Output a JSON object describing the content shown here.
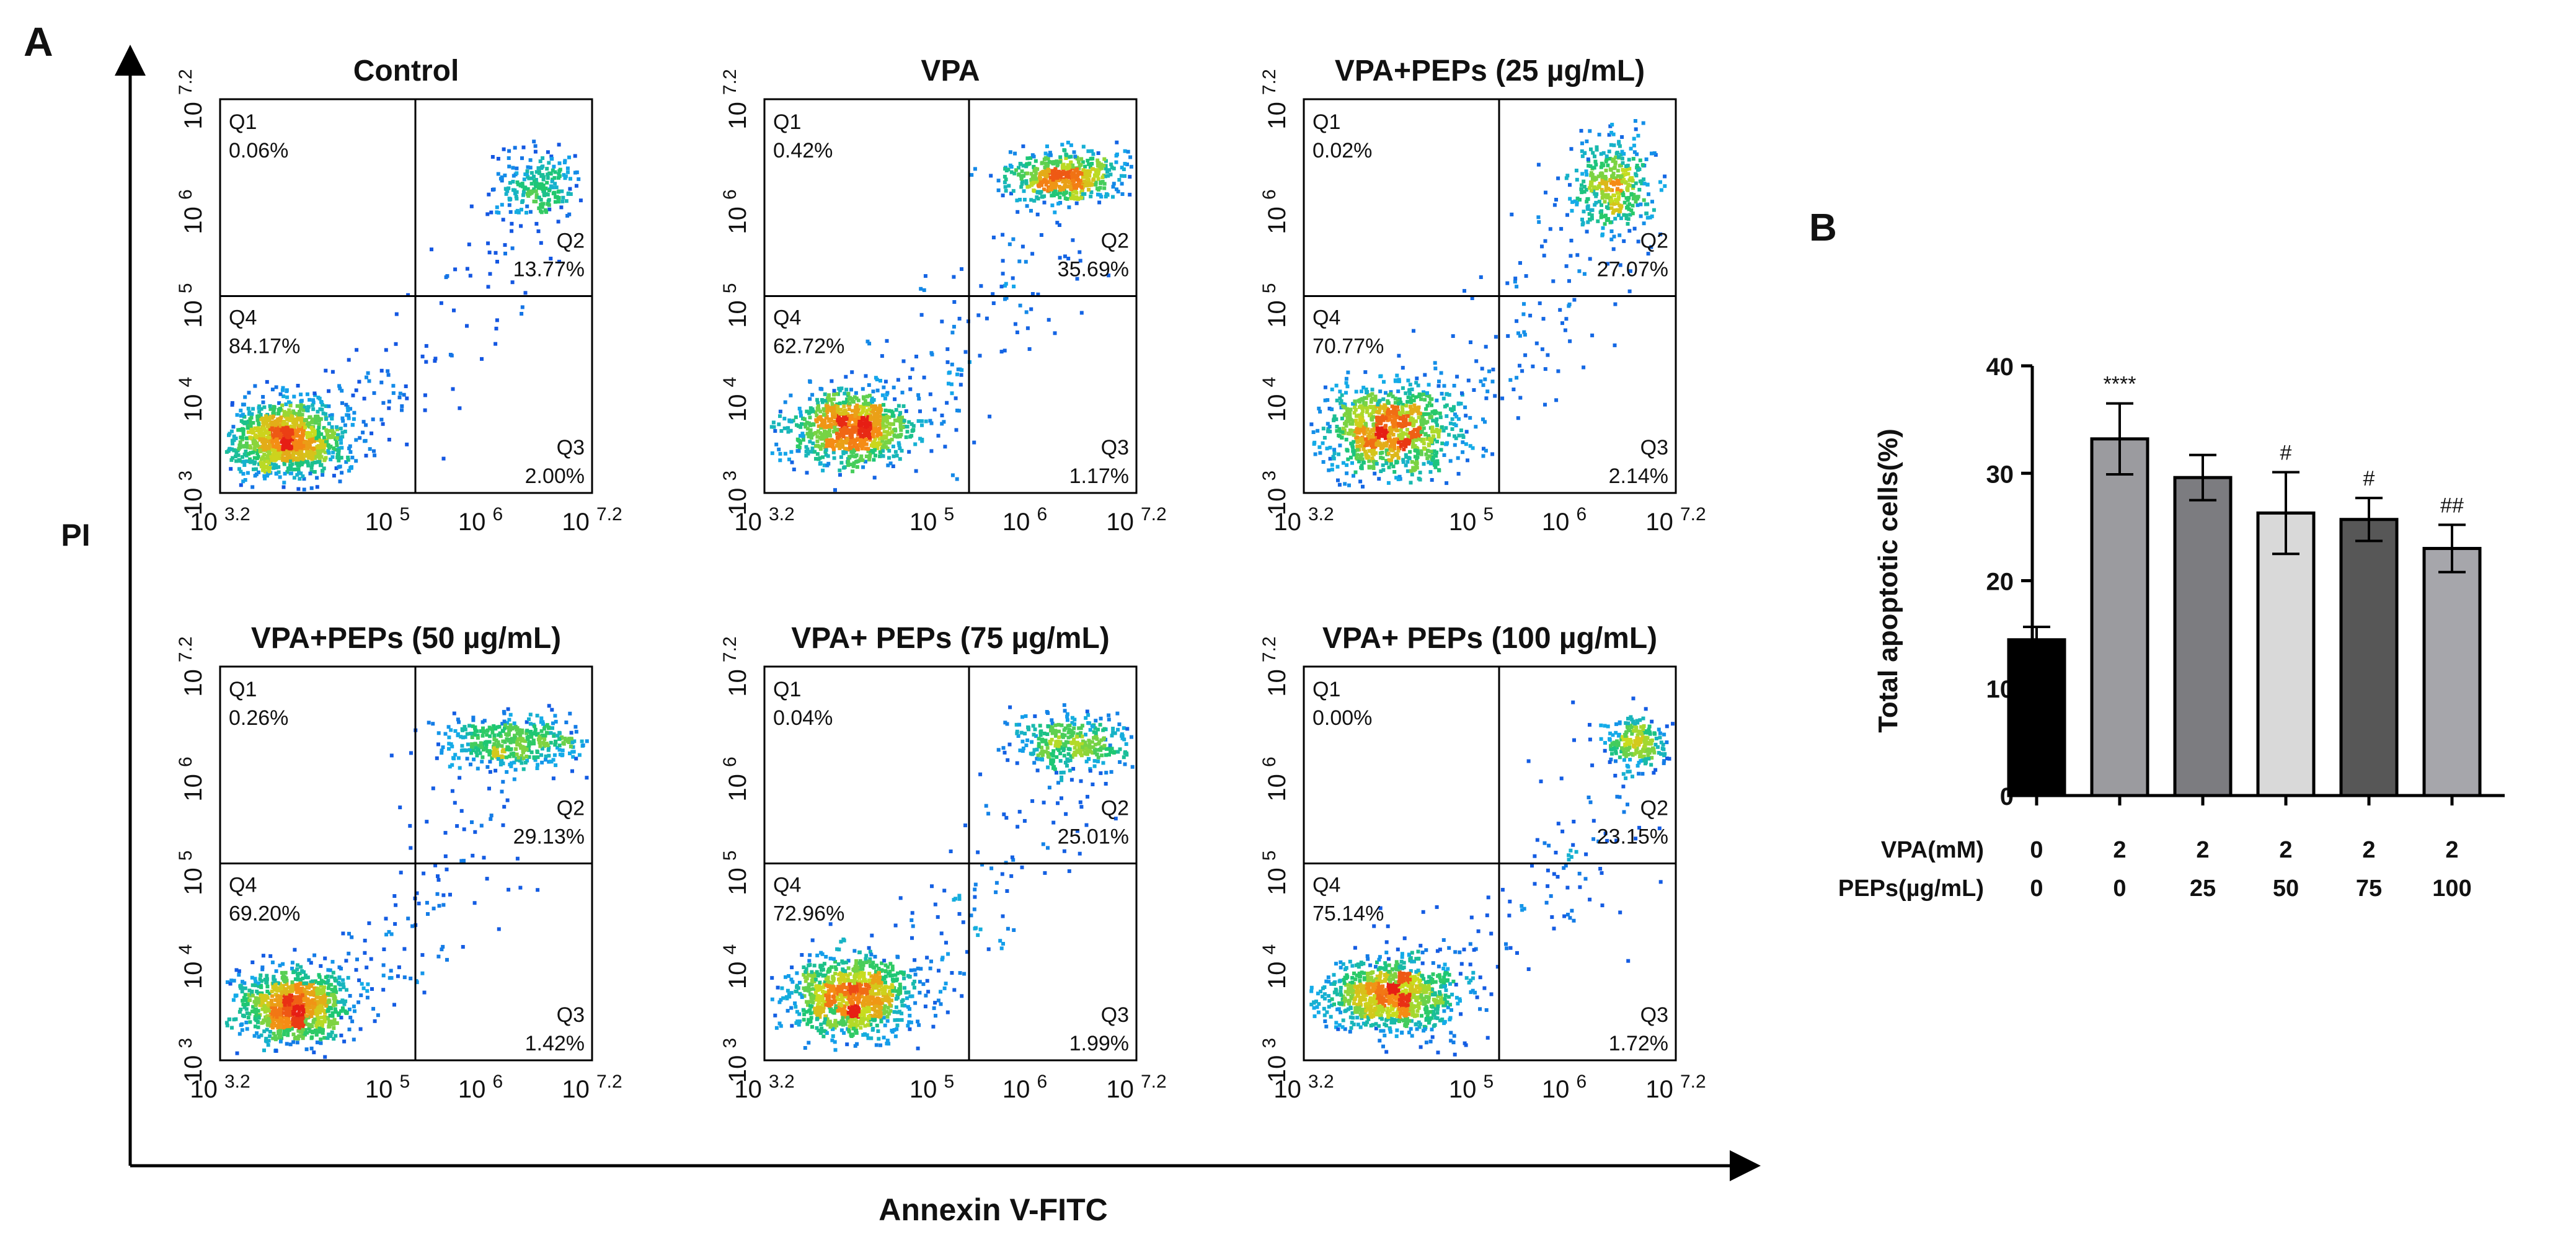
{
  "panel_labels": {
    "a": "A",
    "b": "B"
  },
  "flow": {
    "ylabel": "PI",
    "xlabel": "Annexin V-FITC",
    "x_ticks": [
      {
        "base": "10",
        "exp": "3.2"
      },
      {
        "base": "10",
        "exp": "5"
      },
      {
        "base": "10",
        "exp": "6"
      },
      {
        "base": "10",
        "exp": "7.2"
      }
    ],
    "y_ticks": [
      {
        "base": "10",
        "exp": "3"
      },
      {
        "base": "10",
        "exp": "4"
      },
      {
        "base": "10",
        "exp": "5"
      },
      {
        "base": "10",
        "exp": "6"
      },
      {
        "base": "10",
        "exp": "7.2"
      }
    ],
    "quadrant_names": [
      "Q1",
      "Q2",
      "Q3",
      "Q4"
    ]
  },
  "chart_data": [
    {
      "type": "scatter",
      "title": "Control",
      "x_log_range": [
        3.2,
        7.2
      ],
      "y_log_range": [
        3,
        7.2
      ],
      "gate": {
        "x": 5.3,
        "y": 5.1
      },
      "quadrants": {
        "Q1": "0.06%",
        "Q2": "13.77%",
        "Q3": "2.00%",
        "Q4": "84.17%"
      },
      "clusters": [
        {
          "cx": 3.9,
          "cy": 3.6,
          "sx": 0.32,
          "sy": 0.2,
          "n": 1100
        },
        {
          "cx": 6.6,
          "cy": 6.3,
          "sx": 0.22,
          "sy": 0.18,
          "n": 220
        }
      ],
      "scatter_n": 140
    },
    {
      "type": "scatter",
      "title": "VPA",
      "x_log_range": [
        3.2,
        7.2
      ],
      "y_log_range": [
        3,
        7.2
      ],
      "gate": {
        "x": 5.4,
        "y": 5.1
      },
      "quadrants": {
        "Q1": "0.42%",
        "Q2": "35.69%",
        "Q3": "1.17%",
        "Q4": "62.72%"
      },
      "clusters": [
        {
          "cx": 4.1,
          "cy": 3.7,
          "sx": 0.33,
          "sy": 0.2,
          "n": 850
        },
        {
          "cx": 6.4,
          "cy": 6.4,
          "sx": 0.3,
          "sy": 0.13,
          "n": 520
        }
      ],
      "scatter_n": 160
    },
    {
      "type": "scatter",
      "title": "VPA+PEPs (25 µg/mL)",
      "x_log_range": [
        3.2,
        7.2
      ],
      "y_log_range": [
        3,
        7.2
      ],
      "gate": {
        "x": 5.3,
        "y": 5.1
      },
      "quadrants": {
        "Q1": "0.02%",
        "Q2": "27.07%",
        "Q3": "2.14%",
        "Q4": "70.77%"
      },
      "clusters": [
        {
          "cx": 4.1,
          "cy": 3.7,
          "sx": 0.35,
          "sy": 0.22,
          "n": 900
        },
        {
          "cx": 6.5,
          "cy": 6.3,
          "sx": 0.22,
          "sy": 0.25,
          "n": 380
        }
      ],
      "scatter_n": 170
    },
    {
      "type": "scatter",
      "title": "VPA+PEPs (50 µg/mL)",
      "x_log_range": [
        3.2,
        7.2
      ],
      "y_log_range": [
        3,
        7.2
      ],
      "gate": {
        "x": 5.3,
        "y": 5.1
      },
      "quadrants": {
        "Q1": "0.26%",
        "Q2": "29.13%",
        "Q3": "1.42%",
        "Q4": "69.20%"
      },
      "clusters": [
        {
          "cx": 3.95,
          "cy": 3.6,
          "sx": 0.3,
          "sy": 0.19,
          "n": 950
        },
        {
          "cx": 6.3,
          "cy": 6.4,
          "sx": 0.4,
          "sy": 0.14,
          "n": 420
        }
      ],
      "scatter_n": 150
    },
    {
      "type": "scatter",
      "title": "VPA+ PEPs (75 µg/mL)",
      "x_log_range": [
        3.2,
        7.2
      ],
      "y_log_range": [
        3,
        7.2
      ],
      "gate": {
        "x": 5.4,
        "y": 5.1
      },
      "quadrants": {
        "Q1": "0.04%",
        "Q2": "25.01%",
        "Q3": "1.99%",
        "Q4": "72.96%"
      },
      "clusters": [
        {
          "cx": 4.1,
          "cy": 3.7,
          "sx": 0.33,
          "sy": 0.2,
          "n": 950
        },
        {
          "cx": 6.5,
          "cy": 6.4,
          "sx": 0.3,
          "sy": 0.14,
          "n": 330
        }
      ],
      "scatter_n": 150
    },
    {
      "type": "scatter",
      "title": "VPA+ PEPs (100 µg/mL)",
      "x_log_range": [
        3.2,
        7.2
      ],
      "y_log_range": [
        3,
        7.2
      ],
      "gate": {
        "x": 5.3,
        "y": 5.1
      },
      "quadrants": {
        "Q1": "0.00%",
        "Q2": "23.15%",
        "Q3": "1.72%",
        "Q4": "75.14%"
      },
      "clusters": [
        {
          "cx": 4.1,
          "cy": 3.7,
          "sx": 0.35,
          "sy": 0.2,
          "n": 950
        },
        {
          "cx": 6.75,
          "cy": 6.4,
          "sx": 0.18,
          "sy": 0.13,
          "n": 240
        }
      ],
      "scatter_n": 150
    },
    {
      "type": "bar",
      "title": "",
      "ylabel": "Total apoptotic cells(%)",
      "ylim": [
        0,
        40
      ],
      "yticks": [
        0,
        10,
        20,
        30,
        40
      ],
      "values": [
        14.5,
        33.2,
        29.6,
        26.3,
        25.7,
        23.0
      ],
      "errors": [
        1.2,
        3.3,
        2.1,
        3.8,
        2.0,
        2.2
      ],
      "significance": [
        "",
        "****",
        "",
        "#",
        "#",
        "##"
      ],
      "bar_colors": [
        "#000000",
        "#9b9b9f",
        "#7c7c80",
        "#d9d9d9",
        "#575757",
        "#a6a6ab"
      ],
      "row_labels": [
        "VPA(mM)",
        "PEPs(µg/mL)"
      ],
      "rows": [
        [
          "0",
          "2",
          "2",
          "2",
          "2",
          "2"
        ],
        [
          "0",
          "0",
          "25",
          "50",
          "75",
          "100"
        ]
      ]
    }
  ]
}
